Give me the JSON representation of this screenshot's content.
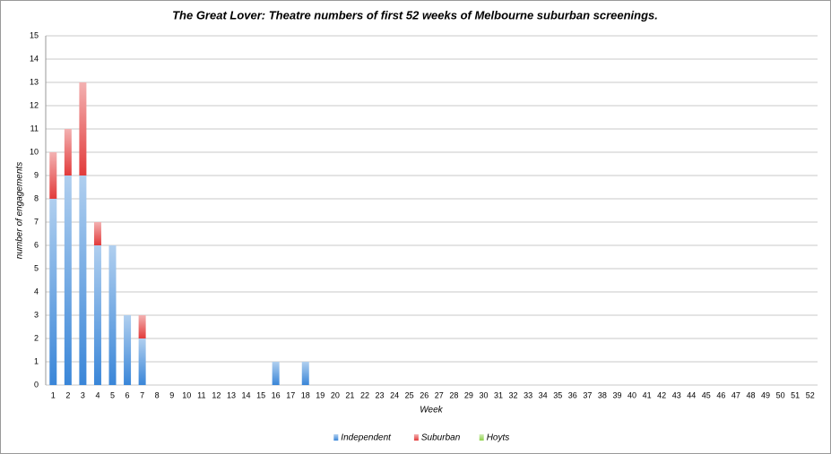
{
  "chart_data": {
    "type": "stacked-bar",
    "title": "The Great Lover: Theatre numbers of first 52 weeks of Melbourne suburban screenings.",
    "x_label": "Week",
    "y_label": "number of engagements",
    "categories": [
      1,
      2,
      3,
      4,
      5,
      6,
      7,
      8,
      9,
      10,
      11,
      12,
      13,
      14,
      15,
      16,
      17,
      18,
      19,
      20,
      21,
      22,
      23,
      24,
      25,
      26,
      27,
      28,
      29,
      30,
      31,
      32,
      33,
      34,
      35,
      36,
      37,
      38,
      39,
      40,
      41,
      42,
      43,
      44,
      45,
      46,
      47,
      48,
      49,
      50,
      51,
      52
    ],
    "series": [
      {
        "name": "Independent",
        "color": "#3a86d8",
        "values": [
          8,
          9,
          9,
          6,
          6,
          3,
          2,
          0,
          0,
          0,
          0,
          0,
          0,
          0,
          0,
          1,
          0,
          1,
          0,
          0,
          0,
          0,
          0,
          0,
          0,
          0,
          0,
          0,
          0,
          0,
          0,
          0,
          0,
          0,
          0,
          0,
          0,
          0,
          0,
          0,
          0,
          0,
          0,
          0,
          0,
          0,
          0,
          0,
          0,
          0,
          0,
          0
        ]
      },
      {
        "name": "Suburban",
        "color": "#e23b3b",
        "values": [
          2,
          2,
          4,
          1,
          0,
          0,
          1,
          0,
          0,
          0,
          0,
          0,
          0,
          0,
          0,
          0,
          0,
          0,
          0,
          0,
          0,
          0,
          0,
          0,
          0,
          0,
          0,
          0,
          0,
          0,
          0,
          0,
          0,
          0,
          0,
          0,
          0,
          0,
          0,
          0,
          0,
          0,
          0,
          0,
          0,
          0,
          0,
          0,
          0,
          0,
          0,
          0
        ]
      },
      {
        "name": "Hoyts",
        "color": "#8fd24a",
        "values": [
          0,
          0,
          0,
          0,
          0,
          0,
          0,
          0,
          0,
          0,
          0,
          0,
          0,
          0,
          0,
          0,
          0,
          0,
          0,
          0,
          0,
          0,
          0,
          0,
          0,
          0,
          0,
          0,
          0,
          0,
          0,
          0,
          0,
          0,
          0,
          0,
          0,
          0,
          0,
          0,
          0,
          0,
          0,
          0,
          0,
          0,
          0,
          0,
          0,
          0,
          0,
          0
        ]
      }
    ],
    "ylim": [
      0,
      15
    ],
    "yticks": [
      0,
      1,
      2,
      3,
      4,
      5,
      6,
      7,
      8,
      9,
      10,
      11,
      12,
      13,
      14,
      15
    ],
    "grid": true,
    "legend": "bottom"
  }
}
